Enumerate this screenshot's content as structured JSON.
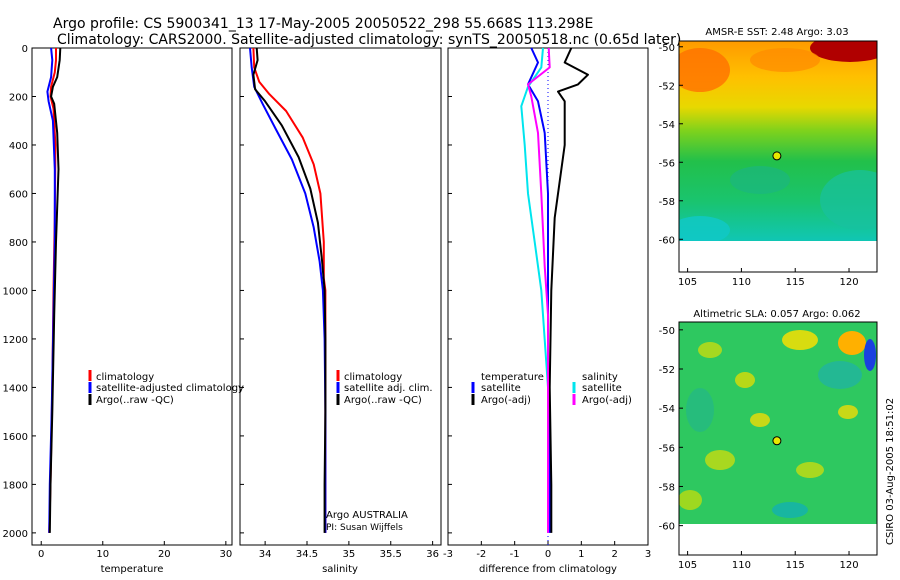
{
  "header": {
    "line1": "Argo profile: CS 5900341_13 17-May-2005 20050522_298 55.668S 113.298E",
    "line2": "Climatology: CARS2000. Satellite-adjusted climatology: synTS_20050518.nc (0.65d later)"
  },
  "side_text": "CSIRO 03-Aug-2005 18:51:02",
  "credit": {
    "line1": "Argo AUSTRALIA",
    "line2": "PI: Susan Wijffels"
  },
  "colors": {
    "climatology": "#ff0000",
    "satellite": "#0000ff",
    "argo": "#000000",
    "cyan": "#00e5ee",
    "magenta": "#ff00ff"
  },
  "chart_data": [
    {
      "type": "line",
      "id": "temperature",
      "xlabel": "temperature",
      "xlim": [
        -1.5,
        31
      ],
      "ylim": [
        2050,
        0
      ],
      "xticks": [
        0,
        10,
        20,
        30
      ],
      "yticks": [
        0,
        200,
        400,
        600,
        800,
        1000,
        1200,
        1400,
        1600,
        1800,
        2000
      ],
      "legend": [
        "climatology",
        "satellite-adjusted climatology",
        "Argo(..raw -QC)"
      ],
      "series": [
        {
          "name": "climatology",
          "color": "#ff0000",
          "points": [
            [
              2.4,
              0
            ],
            [
              2.4,
              50
            ],
            [
              2.2,
              100
            ],
            [
              1.6,
              160
            ],
            [
              1.5,
              200
            ],
            [
              2.0,
              250
            ],
            [
              2.3,
              400
            ],
            [
              2.2,
              700
            ],
            [
              2.0,
              1000
            ],
            [
              1.8,
              1400
            ],
            [
              1.5,
              1800
            ],
            [
              1.3,
              2000
            ]
          ]
        },
        {
          "name": "satellite-adjusted climatology",
          "color": "#0000ff",
          "points": [
            [
              1.6,
              0
            ],
            [
              1.8,
              50
            ],
            [
              1.6,
              120
            ],
            [
              1.0,
              180
            ],
            [
              1.2,
              220
            ],
            [
              1.9,
              300
            ],
            [
              2.2,
              500
            ],
            [
              2.2,
              800
            ],
            [
              2.0,
              1100
            ],
            [
              1.7,
              1500
            ],
            [
              1.4,
              1800
            ],
            [
              1.3,
              2000
            ]
          ]
        },
        {
          "name": "Argo(..raw -QC)",
          "color": "#000000",
          "points": [
            [
              3.1,
              0
            ],
            [
              3.0,
              50
            ],
            [
              2.6,
              120
            ],
            [
              1.9,
              160
            ],
            [
              1.6,
              200
            ],
            [
              2.1,
              230
            ],
            [
              2.6,
              350
            ],
            [
              2.8,
              500
            ],
            [
              2.4,
              800
            ],
            [
              2.1,
              1100
            ],
            [
              1.8,
              1500
            ],
            [
              1.5,
              1800
            ],
            [
              1.4,
              2000
            ]
          ]
        }
      ]
    },
    {
      "type": "line",
      "id": "salinity",
      "xlabel": "salinity",
      "xlim": [
        33.7,
        36.1
      ],
      "ylim": [
        2050,
        0
      ],
      "xticks": [
        34,
        34.5,
        35,
        35.5,
        36
      ],
      "xticklabels": [
        "34",
        "34.5",
        "35",
        "35.5",
        "36"
      ],
      "legend": [
        "climatology",
        "satellite adj. clim.",
        "Argo(..raw -QC)"
      ],
      "series": [
        {
          "name": "climatology",
          "color": "#ff0000",
          "points": [
            [
              33.86,
              0
            ],
            [
              33.87,
              80
            ],
            [
              33.93,
              140
            ],
            [
              34.05,
              190
            ],
            [
              34.25,
              260
            ],
            [
              34.45,
              370
            ],
            [
              34.58,
              480
            ],
            [
              34.66,
              600
            ],
            [
              34.7,
              800
            ],
            [
              34.7,
              950
            ],
            [
              34.72,
              1000
            ],
            [
              34.72,
              1200
            ],
            [
              34.72,
              1500
            ],
            [
              34.72,
              1800
            ],
            [
              34.72,
              2000
            ]
          ]
        },
        {
          "name": "satellite adj. clim.",
          "color": "#0000ff",
          "points": [
            [
              33.82,
              0
            ],
            [
              33.84,
              80
            ],
            [
              33.87,
              160
            ],
            [
              33.97,
              230
            ],
            [
              34.12,
              330
            ],
            [
              34.32,
              460
            ],
            [
              34.48,
              600
            ],
            [
              34.58,
              740
            ],
            [
              34.65,
              880
            ],
            [
              34.69,
              1000
            ],
            [
              34.71,
              1200
            ],
            [
              34.72,
              1500
            ],
            [
              34.72,
              2000
            ]
          ]
        },
        {
          "name": "Argo(..raw -QC)",
          "color": "#000000",
          "points": [
            [
              33.9,
              0
            ],
            [
              33.91,
              50
            ],
            [
              33.86,
              110
            ],
            [
              33.88,
              170
            ],
            [
              34.0,
              220
            ],
            [
              34.2,
              320
            ],
            [
              34.4,
              450
            ],
            [
              34.54,
              580
            ],
            [
              34.63,
              720
            ],
            [
              34.68,
              880
            ],
            [
              34.71,
              1000
            ],
            [
              34.72,
              1200
            ],
            [
              34.72,
              1500
            ],
            [
              34.71,
              1800
            ],
            [
              34.71,
              2000
            ]
          ]
        }
      ]
    },
    {
      "type": "line",
      "id": "difference",
      "xlabel": "difference from climatology",
      "xlim": [
        -3,
        3
      ],
      "ylim": [
        2050,
        0
      ],
      "xticks": [
        -3,
        -2,
        -1,
        0,
        1,
        2,
        3
      ],
      "legend_left_title": "temperature",
      "legend_left": [
        "satellite",
        "Argo(-adj)"
      ],
      "legend_right_title": "salinity",
      "legend_right": [
        "satellite",
        "Argo(-adj)"
      ],
      "series": [
        {
          "name": "temperature satellite",
          "color": "#0000ff",
          "points": [
            [
              -0.5,
              0
            ],
            [
              -0.3,
              60
            ],
            [
              -0.6,
              150
            ],
            [
              -0.3,
              220
            ],
            [
              -0.1,
              350
            ],
            [
              0.0,
              600
            ],
            [
              0.0,
              1000
            ],
            [
              0.0,
              1400
            ],
            [
              0.05,
              1800
            ],
            [
              0.05,
              2000
            ]
          ]
        },
        {
          "name": "temperature Argo(-adj)",
          "color": "#000000",
          "points": [
            [
              0.7,
              0
            ],
            [
              0.5,
              60
            ],
            [
              1.2,
              110
            ],
            [
              0.9,
              150
            ],
            [
              0.3,
              180
            ],
            [
              0.5,
              220
            ],
            [
              0.5,
              400
            ],
            [
              0.2,
              700
            ],
            [
              0.1,
              1000
            ],
            [
              0.05,
              1400
            ],
            [
              0.1,
              1800
            ],
            [
              0.1,
              2000
            ]
          ]
        },
        {
          "name": "salinity satellite",
          "color": "#00e5ee",
          "points": [
            [
              -0.15,
              0
            ],
            [
              -0.2,
              80
            ],
            [
              -0.6,
              160
            ],
            [
              -0.8,
              240
            ],
            [
              -0.7,
              400
            ],
            [
              -0.6,
              600
            ],
            [
              -0.4,
              800
            ],
            [
              -0.2,
              1000
            ],
            [
              0.0,
              1400
            ],
            [
              0.0,
              2000
            ]
          ]
        },
        {
          "name": "salinity Argo(-adj)",
          "color": "#ff00ff",
          "points": [
            [
              0.02,
              0
            ],
            [
              0.05,
              80
            ],
            [
              -0.6,
              150
            ],
            [
              -0.5,
              200
            ],
            [
              -0.3,
              350
            ],
            [
              -0.2,
              600
            ],
            [
              -0.1,
              900
            ],
            [
              0.0,
              1100
            ],
            [
              0.0,
              1500
            ],
            [
              0.0,
              2000
            ]
          ]
        }
      ]
    },
    {
      "type": "heatmap",
      "id": "sst",
      "title": "AMSR-E SST: 2.48  Argo: 3.03",
      "xlim": [
        104.2,
        122.6
      ],
      "ylim": [
        -61.7,
        -49.7
      ],
      "data_ylim": [
        -60.1,
        -49.7
      ],
      "xticks": [
        105,
        110,
        115,
        120
      ],
      "yticks": [
        -50,
        -52,
        -54,
        -56,
        -58,
        -60
      ],
      "marker": {
        "lon": 113.298,
        "lat": -55.668
      }
    },
    {
      "type": "heatmap",
      "id": "sla",
      "title": "Altimetric SLA: 0.057  Argo: 0.062",
      "xlim": [
        104.2,
        122.6
      ],
      "ylim": [
        -61.5,
        -49.6
      ],
      "data_ylim": [
        -60.1,
        -49.6
      ],
      "xticks": [
        105,
        110,
        115,
        120
      ],
      "yticks": [
        -50,
        -52,
        -54,
        -56,
        -58,
        -60
      ],
      "marker": {
        "lon": 113.298,
        "lat": -55.668
      }
    }
  ]
}
